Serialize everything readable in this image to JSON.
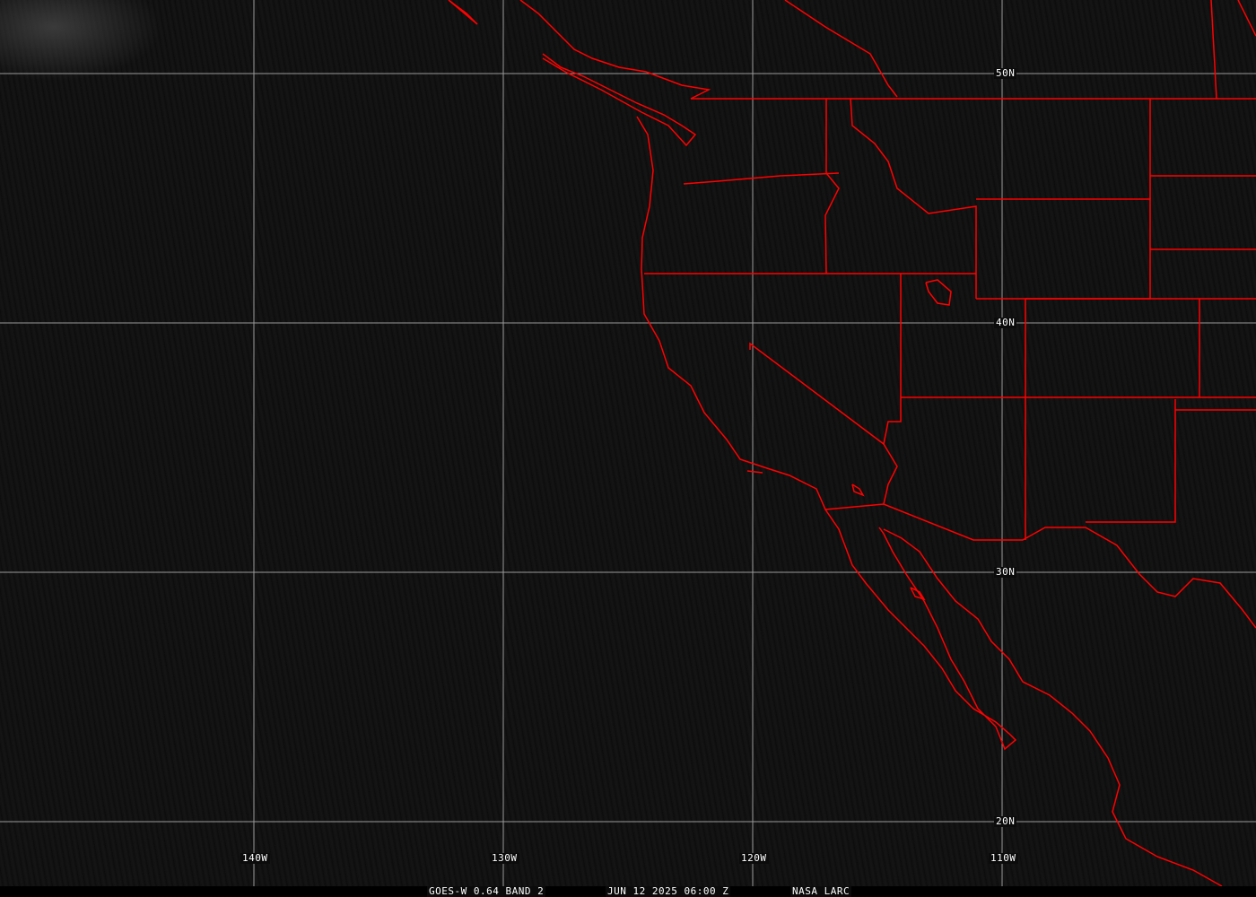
{
  "map": {
    "caption": {
      "product": "GOES-W 0.64 BAND 2",
      "datetime": "JUN 12 2025 06:00 Z",
      "source": "NASA LARC"
    },
    "latitude_labels": [
      "50N",
      "40N",
      "30N",
      "20N"
    ],
    "longitude_labels": [
      "140W",
      "130W",
      "120W",
      "110W"
    ],
    "colors": {
      "boundaries": "#ff0000",
      "grid": "#9a9a9a",
      "labels": "#ffffff",
      "background": "#0d0d0d"
    }
  }
}
